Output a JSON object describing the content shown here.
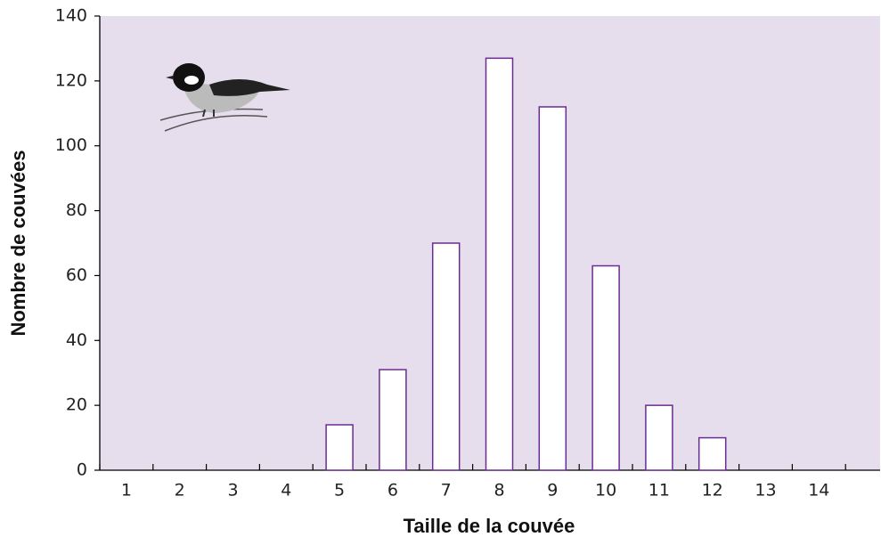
{
  "chart_data": {
    "type": "bar",
    "x_label": "Taille de la couvée",
    "y_label": "Nombre de couvées",
    "categories": [
      "1",
      "2",
      "3",
      "4",
      "5",
      "6",
      "7",
      "8",
      "9",
      "10",
      "11",
      "12",
      "13",
      "14"
    ],
    "values": [
      0,
      0,
      0,
      0,
      14,
      31,
      70,
      127,
      112,
      63,
      20,
      10,
      0,
      0
    ],
    "color": "#ffffff",
    "edge_color": "#6b2c91",
    "background": "#e7deed",
    "ylim": [
      0,
      140
    ],
    "yticks": [
      0,
      20,
      40,
      60,
      80,
      100,
      120,
      140
    ],
    "grid": false
  }
}
